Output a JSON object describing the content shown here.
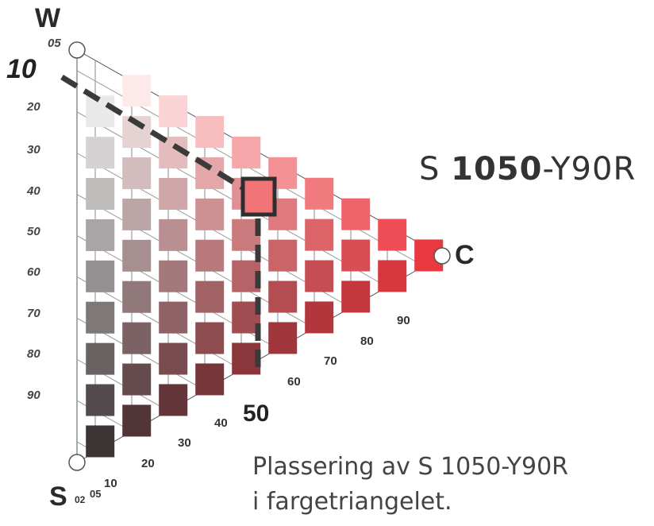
{
  "labels": {
    "W": "W",
    "S": "S",
    "C": "C"
  },
  "left_ticks": [
    "05",
    "10",
    "20",
    "30",
    "40",
    "50",
    "60",
    "70",
    "80",
    "90"
  ],
  "bottom_small_ticks": [
    "02",
    "05",
    "10"
  ],
  "bottom_ticks": [
    "20",
    "30",
    "40",
    "50",
    "60",
    "70",
    "80",
    "90"
  ],
  "notation": {
    "prefix": "S ",
    "nuance": "1050",
    "hue": "-Y90R"
  },
  "caption": {
    "line1": "Plassering av S 1050-Y90R",
    "line2": "i fargetriangelet."
  },
  "selected": {
    "blackness": 10,
    "chromaticness": 50
  },
  "colors": {
    "selected_swatch": "#f07478",
    "pure_red": "#e8222a",
    "dashed_line": "#3a3a3a"
  }
}
